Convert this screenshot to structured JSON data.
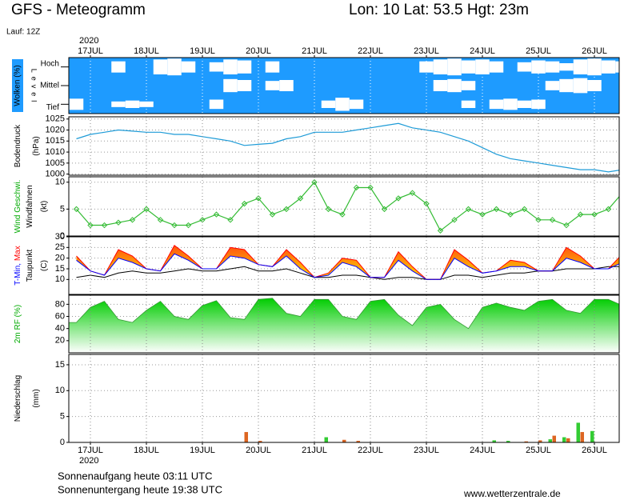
{
  "header": {
    "title": "GFS - Meteogramm",
    "location": "Lon: 10 Lat: 53.5 Hgt: 23m",
    "run": "Lauf: 12Z"
  },
  "time_axis": {
    "year": "2020",
    "categories": [
      null,
      "17JUL",
      null,
      null,
      null,
      "18JUL",
      null,
      null,
      null,
      "19JUL",
      null,
      null,
      null,
      "20JUL",
      null,
      null,
      null,
      "21JUL",
      null,
      null,
      null,
      "22JUL",
      null,
      null,
      null,
      "23JUL",
      null,
      null,
      null,
      "24JUL",
      null,
      null,
      null,
      "25JUL",
      null,
      null,
      null,
      "26JUL",
      null,
      null
    ]
  },
  "chart_data": [
    {
      "type": "clouds",
      "color": "#1e9bff",
      "label": "Wolken (%)",
      "axis_label": "Level",
      "levels": [
        {
          "name": "Hoch",
          "values": [
            0,
            0,
            0,
            60,
            0,
            0,
            80,
            90,
            60,
            0,
            50,
            80,
            70,
            0,
            60,
            0,
            0,
            0,
            0,
            0,
            0,
            0,
            0,
            0,
            0,
            60,
            80,
            90,
            70,
            80,
            60,
            0,
            50,
            70,
            60,
            40,
            80,
            90,
            70,
            60
          ]
        },
        {
          "name": "Mittel",
          "values": [
            0,
            0,
            0,
            0,
            0,
            0,
            0,
            0,
            0,
            0,
            0,
            70,
            60,
            0,
            50,
            60,
            0,
            0,
            0,
            0,
            0,
            0,
            0,
            0,
            0,
            0,
            60,
            70,
            50,
            0,
            0,
            0,
            0,
            0,
            50,
            70,
            80,
            60,
            0,
            0
          ]
        },
        {
          "name": "Tief",
          "values": [
            60,
            0,
            0,
            30,
            40,
            30,
            0,
            0,
            0,
            0,
            50,
            0,
            0,
            0,
            0,
            0,
            0,
            0,
            40,
            70,
            50,
            0,
            0,
            0,
            0,
            0,
            0,
            0,
            40,
            0,
            50,
            60,
            40,
            50,
            0,
            0,
            0,
            0,
            0,
            0
          ]
        }
      ]
    },
    {
      "type": "line",
      "y_label": [
        [
          {
            "text": "Bodendruck",
            "color": "#000000"
          }
        ],
        [
          {
            "text": "(hPa)",
            "color": "#000000"
          }
        ]
      ],
      "ylim": [
        999.5,
        1026
      ],
      "yticks": [
        1000,
        1005,
        1010,
        1015,
        1020,
        1025
      ],
      "grid": true,
      "series": [
        {
          "color": "#1e9bd7",
          "values": [
            1016,
            1018,
            1019,
            1020,
            1019.5,
            1019,
            1019,
            1018,
            1018,
            1017,
            1016,
            1015,
            1013,
            1013.5,
            1014,
            1016,
            1017,
            1019,
            1019,
            1019,
            1020,
            1021,
            1022,
            1023,
            1021,
            1020,
            1019,
            1017,
            1015,
            1012,
            1009,
            1007,
            1006,
            1005,
            1004,
            1003,
            1002,
            1002,
            1001,
            1002
          ]
        }
      ]
    },
    {
      "type": "line",
      "markers": true,
      "y_label": [
        [
          {
            "text": "Wind Geschwi.",
            "color": "#00aa00"
          }
        ],
        [
          {
            "text": "Windfahnen",
            "color": "#000000"
          }
        ],
        [
          {
            "text": "(kt)",
            "color": "#000000"
          }
        ]
      ],
      "ylim": [
        0,
        11
      ],
      "yticks": [
        0,
        5,
        10
      ],
      "grid": true,
      "series": [
        {
          "color": "#33bb33",
          "values": [
            5,
            2,
            2,
            2.5,
            3,
            5,
            3,
            2,
            2,
            3,
            4,
            3,
            6,
            7,
            4,
            5,
            7,
            10,
            5,
            4,
            9,
            9,
            5,
            7,
            8,
            6,
            1,
            3,
            5,
            4,
            5,
            4,
            5,
            3,
            3,
            2,
            4,
            4,
            5,
            8
          ]
        }
      ]
    },
    {
      "type": "band",
      "y_label": [
        [
          {
            "text": "T-Min,",
            "color": "#0000ff"
          },
          {
            "text": "Max",
            "color": "#ff0000"
          }
        ],
        [
          {
            "text": "Taupunkt",
            "color": "#000000"
          }
        ],
        [
          {
            "text": "(C)",
            "color": "#000000"
          }
        ]
      ],
      "ylim": [
        3,
        30
      ],
      "yticks": [
        10,
        15,
        20,
        25,
        30
      ],
      "grid": true,
      "fill": [
        "#ffe000",
        "#ff5010"
      ],
      "series": [
        {
          "color": "#0000ff",
          "values": [
            19,
            14,
            12,
            20,
            18,
            15,
            14,
            22,
            19,
            15,
            15,
            21,
            20,
            17,
            16,
            21,
            15,
            11,
            12,
            18,
            16,
            11,
            11,
            19,
            14,
            10,
            10,
            20,
            16,
            13,
            14,
            16,
            16,
            14,
            14,
            20,
            18,
            15,
            15,
            18
          ]
        },
        {
          "color": "#ff0000",
          "values": [
            21,
            14,
            12,
            24,
            21,
            15,
            14,
            26,
            21,
            15,
            15,
            25,
            24,
            17,
            16,
            24,
            18,
            11,
            13,
            20,
            19,
            11,
            11,
            23,
            16,
            10,
            10,
            24,
            19,
            13,
            14,
            19,
            18,
            14,
            14,
            25,
            21,
            15,
            15,
            22
          ]
        },
        {
          "color": "#000000",
          "values": [
            11,
            12,
            11,
            13,
            14,
            13,
            13,
            14,
            15,
            14,
            14,
            15,
            16,
            14,
            14,
            15,
            13,
            11,
            11,
            12,
            12,
            11,
            10,
            11,
            11,
            10,
            10,
            12,
            12,
            11,
            12,
            13,
            13,
            14,
            14,
            15,
            15,
            15,
            16,
            16
          ]
        }
      ]
    },
    {
      "type": "area",
      "y_label": [
        [
          {
            "text": "2m RF (%)",
            "color": "#00aa00"
          }
        ]
      ],
      "ylim": [
        0,
        95
      ],
      "yticks": [
        20,
        40,
        60,
        80
      ],
      "grid": true,
      "color": "#00cc00",
      "series": [
        {
          "color": "#00cc00",
          "values": [
            50,
            75,
            85,
            55,
            50,
            70,
            85,
            60,
            55,
            78,
            86,
            58,
            55,
            88,
            90,
            65,
            60,
            88,
            88,
            60,
            55,
            85,
            88,
            62,
            45,
            75,
            80,
            55,
            40,
            75,
            82,
            75,
            70,
            85,
            88,
            70,
            65,
            88,
            88,
            78
          ]
        }
      ]
    },
    {
      "type": "bar",
      "y_label": [
        [
          {
            "text": "Niederschlag",
            "color": "#000000"
          }
        ],
        [
          {
            "text": "(mm)",
            "color": "#000000"
          }
        ]
      ],
      "ylim": [
        0,
        17
      ],
      "yticks": [
        0,
        5,
        10,
        15
      ],
      "grid": true,
      "series": [
        {
          "color": "#33cc33",
          "values": [
            0,
            0,
            0,
            0,
            0,
            0,
            0,
            0,
            0,
            0,
            0,
            0,
            0,
            0,
            0,
            0,
            0,
            0,
            1,
            0,
            0,
            0,
            0,
            0,
            0,
            0,
            0,
            0,
            0,
            0,
            0.4,
            0.3,
            0,
            0,
            0.6,
            1,
            3.8,
            2.2,
            0,
            0
          ]
        },
        {
          "color": "#dd6622",
          "values": [
            0,
            0,
            0,
            0,
            0,
            0,
            0,
            0,
            0,
            0,
            0,
            0,
            2,
            0.3,
            0,
            0,
            0,
            0,
            0,
            0.5,
            0.3,
            0,
            0,
            0,
            0,
            0,
            0,
            0,
            0,
            0,
            0,
            0,
            0.2,
            0.4,
            1.3,
            0.8,
            2,
            0,
            0,
            2.6
          ]
        }
      ]
    }
  ],
  "footer": {
    "sunrise": "Sonnenaufgang heute 03:11 UTC",
    "sunset": "Sonnenuntergang heute 19:38 UTC",
    "source": "www.wetterzentrale.de"
  }
}
